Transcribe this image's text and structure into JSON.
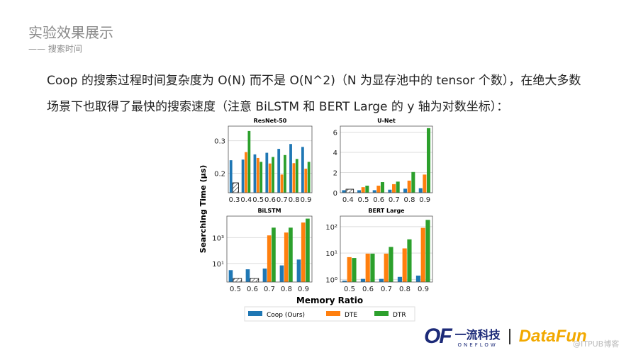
{
  "slide": {
    "title": "实验效果展示",
    "subtitle": "—— 搜索时间",
    "paragraph": "Coop 的搜索过程时间复杂度为 O(N) 而不是 O(N^2)（N 为显存池中的 tensor 个数），在绝大多数场景下也取得了最快的搜索速度（注意 BiLSTM 和 BERT Large 的 y 轴为对数坐标）："
  },
  "logos": {
    "oneflow_mark": "OF",
    "oneflow_cn": "一流科技",
    "oneflow_en": "ONEFLOW",
    "datafun": "DataFun",
    "watermark": "@ITPUB博客"
  },
  "chart_data": {
    "type": "bar",
    "ylabel": "Searching Time (μs)",
    "xlabel": "Memory Ratio",
    "legend": {
      "position": "bottom",
      "entries": [
        "Coop (Ours)",
        "DTE",
        "DTR"
      ]
    },
    "colors": [
      "#1f77b4",
      "#ff7f0e",
      "#2ca02c"
    ],
    "note": "null = failed (hatched)",
    "subplots": [
      {
        "title": "ResNet-50",
        "scale": "linear",
        "ylim": [
          0.14,
          0.345
        ],
        "yticks": [
          0.2,
          0.3
        ],
        "ytick_labels": [
          "0.2",
          "0.3"
        ],
        "categories": [
          "0.3",
          "0.4",
          "0.5",
          "0.6",
          "0.7",
          "0.8",
          "0.9"
        ],
        "series": [
          {
            "name": "Coop (Ours)",
            "values": [
              0.24,
              0.242,
              0.258,
              0.263,
              0.275,
              0.29,
              0.281
            ]
          },
          {
            "name": "DTE",
            "values": [
              null,
              0.265,
              0.247,
              0.23,
              0.196,
              0.231,
              0.214
            ]
          },
          {
            "name": "DTR",
            "values": [
              null,
              0.33,
              0.235,
              0.25,
              0.256,
              0.244,
              0.235
            ]
          }
        ]
      },
      {
        "title": "U-Net",
        "scale": "linear",
        "ylim": [
          0,
          6.6
        ],
        "yticks": [
          0,
          2,
          4,
          6
        ],
        "ytick_labels": [
          "0",
          "2",
          "4",
          "6"
        ],
        "categories": [
          "0.4",
          "0.5",
          "0.6",
          "0.7",
          "0.8",
          "0.9"
        ],
        "series": [
          {
            "name": "Coop (Ours)",
            "values": [
              0.25,
              0.25,
              0.25,
              0.3,
              0.4,
              0.45
            ]
          },
          {
            "name": "DTE",
            "values": [
              null,
              0.55,
              0.7,
              0.85,
              1.2,
              1.8
            ]
          },
          {
            "name": "DTR",
            "values": [
              null,
              0.7,
              1.05,
              1.1,
              2.05,
              6.4
            ]
          }
        ]
      },
      {
        "title": "BiLSTM",
        "scale": "log",
        "ylim": [
          0.36,
          47000
        ],
        "yticks": [
          10,
          1000
        ],
        "ytick_labels": [
          "10¹",
          "10³"
        ],
        "categories": [
          "0.5",
          "0.6",
          "0.7",
          "0.8",
          "0.9"
        ],
        "series": [
          {
            "name": "Coop (Ours)",
            "values": [
              3,
              3.5,
              4,
              7,
              20
            ]
          },
          {
            "name": "DTE",
            "values": [
              null,
              null,
              1500,
              2500,
              15000
            ]
          },
          {
            "name": "DTR",
            "values": [
              null,
              null,
              6000,
              6000,
              30000
            ]
          }
        ]
      },
      {
        "title": "BERT Large",
        "scale": "log",
        "ylim": [
          0.8,
          250
        ],
        "yticks": [
          1,
          10,
          100
        ],
        "ytick_labels": [
          "10⁰",
          "10¹",
          "10²"
        ],
        "categories": [
          "0.5",
          "0.6",
          "0.7",
          "0.8",
          "0.9"
        ],
        "series": [
          {
            "name": "Coop (Ours)",
            "values": [
              0.9,
              1.05,
              1.05,
              1.25,
              1.4
            ]
          },
          {
            "name": "DTE",
            "values": [
              7,
              9.5,
              9.5,
              15,
              90
            ]
          },
          {
            "name": "DTR",
            "values": [
              6.5,
              9.5,
              17,
              33,
              180
            ]
          }
        ]
      }
    ]
  }
}
